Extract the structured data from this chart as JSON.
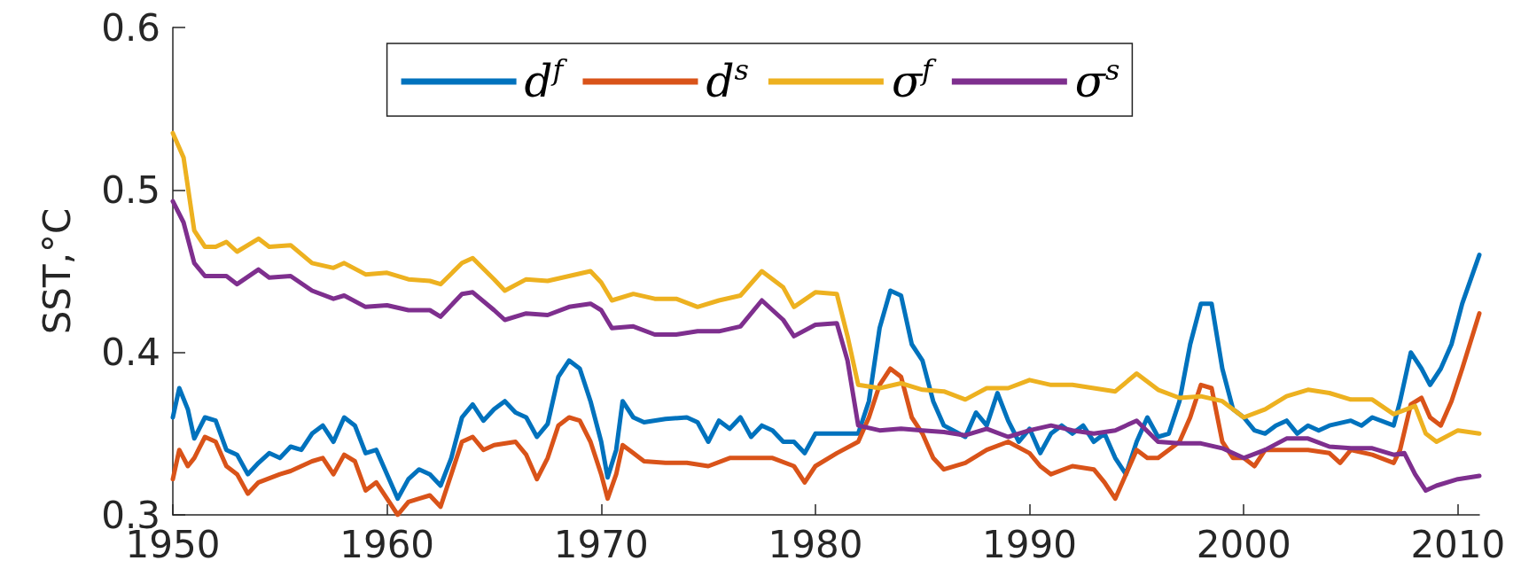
{
  "chart_data": {
    "type": "line",
    "ylabel": "SST,°C",
    "xlim": [
      1950,
      2011
    ],
    "xticks": [
      1950,
      1960,
      1970,
      1980,
      1990,
      2000,
      2010
    ],
    "ylim": [
      0.3,
      0.6
    ],
    "yticks": [
      0.3,
      0.4,
      0.5,
      0.6
    ],
    "grid": false,
    "legend": "top",
    "marker": "none",
    "line_style": "solid",
    "series": [
      {
        "name": "d$^{f}$",
        "color": "#0072bd",
        "x": [
          1950,
          1950.3,
          1950.7,
          1951,
          1951.5,
          1952,
          1952.5,
          1953,
          1953.5,
          1954,
          1954.5,
          1955,
          1955.5,
          1956,
          1956.5,
          1957,
          1957.5,
          1958,
          1958.5,
          1959,
          1959.5,
          1960,
          1960.5,
          1961,
          1961.5,
          1962,
          1962.5,
          1963,
          1963.5,
          1964,
          1964.5,
          1965,
          1965.5,
          1966,
          1966.5,
          1967,
          1967.5,
          1968,
          1968.5,
          1969,
          1969.5,
          1970,
          1970.3,
          1970.7,
          1971,
          1971.5,
          1972,
          1973,
          1974,
          1974.5,
          1975,
          1975.5,
          1976,
          1976.5,
          1977,
          1977.5,
          1978,
          1978.5,
          1979,
          1979.5,
          1980,
          1981,
          1982,
          1982.5,
          1983,
          1983.5,
          1984,
          1984.5,
          1985,
          1985.5,
          1986,
          1987,
          1987.5,
          1988,
          1988.5,
          1989,
          1989.5,
          1990,
          1990.5,
          1991,
          1991.5,
          1992,
          1992.5,
          1993,
          1993.5,
          1994,
          1994.5,
          1995,
          1995.5,
          1996,
          1996.5,
          1997,
          1997.5,
          1998,
          1998.5,
          1999,
          1999.5,
          2000,
          2000.5,
          2001,
          2001.5,
          2002,
          2002.5,
          2003,
          2003.5,
          2004,
          2005,
          2005.5,
          2006,
          2007,
          2007.3,
          2007.8,
          2008.3,
          2008.7,
          2009.2,
          2009.7,
          2010.2,
          2011
        ],
        "values": [
          0.36,
          0.378,
          0.365,
          0.347,
          0.36,
          0.358,
          0.34,
          0.337,
          0.325,
          0.332,
          0.338,
          0.335,
          0.342,
          0.34,
          0.35,
          0.355,
          0.345,
          0.36,
          0.355,
          0.338,
          0.34,
          0.325,
          0.31,
          0.322,
          0.328,
          0.325,
          0.318,
          0.335,
          0.36,
          0.368,
          0.358,
          0.365,
          0.37,
          0.363,
          0.36,
          0.348,
          0.356,
          0.385,
          0.395,
          0.39,
          0.37,
          0.345,
          0.323,
          0.34,
          0.37,
          0.36,
          0.357,
          0.359,
          0.36,
          0.357,
          0.345,
          0.358,
          0.353,
          0.36,
          0.348,
          0.355,
          0.352,
          0.345,
          0.345,
          0.338,
          0.35,
          0.35,
          0.35,
          0.37,
          0.415,
          0.438,
          0.435,
          0.405,
          0.395,
          0.37,
          0.355,
          0.348,
          0.363,
          0.355,
          0.375,
          0.358,
          0.345,
          0.353,
          0.338,
          0.35,
          0.355,
          0.35,
          0.355,
          0.345,
          0.35,
          0.335,
          0.325,
          0.345,
          0.36,
          0.348,
          0.35,
          0.37,
          0.405,
          0.43,
          0.43,
          0.39,
          0.365,
          0.36,
          0.352,
          0.35,
          0.355,
          0.358,
          0.35,
          0.355,
          0.352,
          0.355,
          0.358,
          0.355,
          0.36,
          0.355,
          0.37,
          0.4,
          0.39,
          0.38,
          0.39,
          0.405,
          0.43,
          0.46
        ]
      },
      {
        "name": "d$^{s}$",
        "color": "#d95319",
        "x": [
          1950,
          1950.3,
          1950.7,
          1951,
          1951.5,
          1952,
          1952.5,
          1953,
          1953.5,
          1954,
          1955,
          1955.5,
          1956,
          1956.5,
          1957,
          1957.5,
          1958,
          1958.5,
          1959,
          1959.5,
          1960,
          1960.5,
          1961,
          1961.5,
          1962,
          1962.5,
          1963,
          1963.5,
          1964,
          1964.5,
          1965,
          1966,
          1966.5,
          1967,
          1967.5,
          1968,
          1968.5,
          1969,
          1969.5,
          1970,
          1970.3,
          1970.7,
          1971,
          1971.5,
          1972,
          1973,
          1974,
          1975,
          1976,
          1977,
          1978,
          1979,
          1979.5,
          1980,
          1981,
          1982,
          1982.5,
          1983,
          1983.5,
          1984,
          1984.5,
          1985,
          1985.5,
          1986,
          1987,
          1988,
          1989,
          1990,
          1990.5,
          1991,
          1992,
          1993,
          1993.5,
          1994,
          1994.5,
          1995,
          1995.5,
          1996,
          1996.5,
          1997,
          1997.5,
          1998,
          1998.5,
          1999,
          1999.5,
          2000,
          2000.5,
          2001,
          2002,
          2003,
          2004,
          2004.5,
          2005,
          2006,
          2007,
          2007.3,
          2007.8,
          2008.3,
          2008.7,
          2009.2,
          2009.7,
          2010.2,
          2011
        ],
        "values": [
          0.322,
          0.34,
          0.33,
          0.335,
          0.348,
          0.345,
          0.33,
          0.325,
          0.313,
          0.32,
          0.325,
          0.327,
          0.33,
          0.333,
          0.335,
          0.325,
          0.337,
          0.333,
          0.315,
          0.32,
          0.31,
          0.3,
          0.308,
          0.31,
          0.312,
          0.305,
          0.325,
          0.345,
          0.348,
          0.34,
          0.343,
          0.345,
          0.337,
          0.322,
          0.335,
          0.355,
          0.36,
          0.358,
          0.345,
          0.325,
          0.31,
          0.325,
          0.343,
          0.338,
          0.333,
          0.332,
          0.332,
          0.33,
          0.335,
          0.335,
          0.335,
          0.33,
          0.32,
          0.33,
          0.338,
          0.345,
          0.36,
          0.38,
          0.39,
          0.385,
          0.36,
          0.35,
          0.335,
          0.328,
          0.332,
          0.34,
          0.345,
          0.338,
          0.33,
          0.325,
          0.33,
          0.328,
          0.32,
          0.31,
          0.325,
          0.34,
          0.335,
          0.335,
          0.34,
          0.345,
          0.36,
          0.38,
          0.378,
          0.345,
          0.335,
          0.335,
          0.33,
          0.34,
          0.34,
          0.34,
          0.338,
          0.332,
          0.34,
          0.337,
          0.332,
          0.34,
          0.368,
          0.372,
          0.36,
          0.355,
          0.37,
          0.39,
          0.424
        ]
      },
      {
        "name": "σ$^{f}$",
        "color": "#edb120",
        "x": [
          1950,
          1950.5,
          1951,
          1951.5,
          1952,
          1952.5,
          1953,
          1954,
          1954.5,
          1955.5,
          1956.5,
          1957.5,
          1958,
          1959,
          1960,
          1961,
          1962,
          1962.5,
          1963.5,
          1964,
          1965,
          1965.5,
          1966.5,
          1967.5,
          1968.5,
          1969.5,
          1970,
          1970.5,
          1971.5,
          1972.5,
          1973.5,
          1974.5,
          1975.5,
          1976.5,
          1977.5,
          1978.5,
          1979,
          1980,
          1981,
          1981.5,
          1982,
          1983,
          1984,
          1985,
          1986,
          1987,
          1988,
          1989,
          1990,
          1991,
          1992,
          1993,
          1994,
          1995,
          1996,
          1997,
          1998,
          1999,
          2000,
          2001,
          2002,
          2003,
          2004,
          2005,
          2006,
          2007,
          2008,
          2008.5,
          2009,
          2010,
          2011
        ],
        "values": [
          0.535,
          0.52,
          0.475,
          0.465,
          0.465,
          0.468,
          0.462,
          0.47,
          0.465,
          0.466,
          0.455,
          0.452,
          0.455,
          0.448,
          0.449,
          0.445,
          0.444,
          0.442,
          0.455,
          0.458,
          0.445,
          0.438,
          0.445,
          0.444,
          0.447,
          0.45,
          0.443,
          0.432,
          0.436,
          0.433,
          0.433,
          0.428,
          0.432,
          0.435,
          0.45,
          0.44,
          0.428,
          0.437,
          0.436,
          0.41,
          0.38,
          0.378,
          0.381,
          0.377,
          0.376,
          0.371,
          0.378,
          0.378,
          0.383,
          0.38,
          0.38,
          0.378,
          0.376,
          0.387,
          0.377,
          0.372,
          0.373,
          0.37,
          0.36,
          0.365,
          0.373,
          0.377,
          0.375,
          0.371,
          0.371,
          0.362,
          0.367,
          0.35,
          0.345,
          0.352,
          0.35
        ]
      },
      {
        "name": "σ$^{s}$",
        "color": "#7e2f8e",
        "x": [
          1950,
          1950.5,
          1951,
          1951.5,
          1952.5,
          1953,
          1954,
          1954.5,
          1955.5,
          1956.5,
          1957.5,
          1958,
          1959,
          1960,
          1961,
          1962,
          1962.5,
          1963.5,
          1964,
          1965,
          1965.5,
          1966.5,
          1967.5,
          1968.5,
          1969.5,
          1970,
          1970.5,
          1971.5,
          1972.5,
          1973.5,
          1974.5,
          1975.5,
          1976.5,
          1977.5,
          1978.5,
          1979,
          1980,
          1981,
          1981.5,
          1982,
          1983,
          1984,
          1985,
          1986,
          1987,
          1988,
          1989,
          1990,
          1991,
          1992,
          1993,
          1994,
          1995,
          1996,
          1997,
          1998,
          1999,
          2000,
          2001,
          2002,
          2003,
          2004,
          2005,
          2006,
          2007,
          2007.5,
          2008,
          2008.5,
          2009,
          2010,
          2011
        ],
        "values": [
          0.493,
          0.48,
          0.455,
          0.447,
          0.447,
          0.442,
          0.451,
          0.446,
          0.447,
          0.438,
          0.433,
          0.435,
          0.428,
          0.429,
          0.426,
          0.426,
          0.422,
          0.436,
          0.437,
          0.426,
          0.42,
          0.424,
          0.423,
          0.428,
          0.43,
          0.426,
          0.415,
          0.416,
          0.411,
          0.411,
          0.413,
          0.413,
          0.416,
          0.432,
          0.42,
          0.41,
          0.417,
          0.418,
          0.395,
          0.355,
          0.352,
          0.353,
          0.352,
          0.351,
          0.349,
          0.353,
          0.348,
          0.352,
          0.355,
          0.352,
          0.35,
          0.352,
          0.358,
          0.345,
          0.344,
          0.344,
          0.341,
          0.335,
          0.34,
          0.347,
          0.347,
          0.342,
          0.341,
          0.341,
          0.337,
          0.338,
          0.325,
          0.315,
          0.318,
          0.322,
          0.324
        ]
      }
    ]
  }
}
